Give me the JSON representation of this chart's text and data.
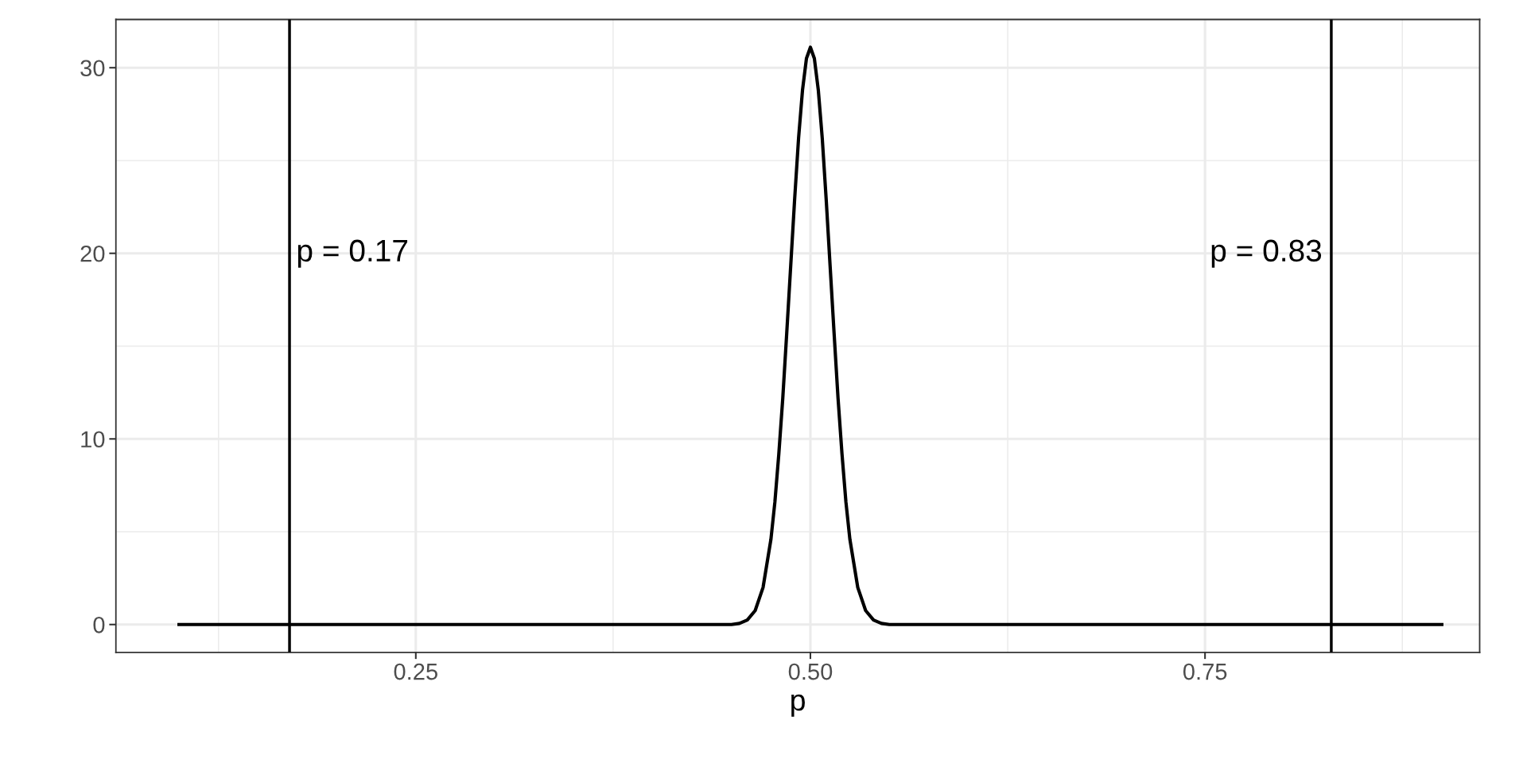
{
  "chart_data": {
    "type": "line",
    "xlabel": "p",
    "series": [
      {
        "color": "#000000",
        "x": [
          0.1,
          0.45,
          0.455,
          0.46,
          0.465,
          0.47,
          0.475,
          0.4775,
          0.48,
          0.4825,
          0.485,
          0.4875,
          0.49,
          0.4925,
          0.495,
          0.4975,
          0.5,
          0.5025,
          0.505,
          0.5075,
          0.51,
          0.5125,
          0.515,
          0.5175,
          0.52,
          0.5225,
          0.525,
          0.53,
          0.535,
          0.54,
          0.545,
          0.55,
          0.9
        ],
        "values": [
          0,
          0,
          0.06,
          0.24,
          0.75,
          2.0,
          4.6,
          6.6,
          9.2,
          12.2,
          15.7,
          19.3,
          22.9,
          26.2,
          28.8,
          30.5,
          31.1,
          30.5,
          28.8,
          26.2,
          22.9,
          19.3,
          15.7,
          12.2,
          9.2,
          6.6,
          4.6,
          2.0,
          0.75,
          0.24,
          0.06,
          0,
          0
        ]
      }
    ],
    "xlim": [
      0.06,
      0.924
    ],
    "ylim": [
      -1.5,
      32.6
    ],
    "xticks": [
      {
        "value": 0.25,
        "label": "0.25"
      },
      {
        "value": 0.5,
        "label": "0.50"
      },
      {
        "value": 0.75,
        "label": "0.75"
      }
    ],
    "yticks": [
      0,
      10,
      20,
      30
    ],
    "ref_lines": [
      {
        "axis": "x",
        "value": 0.17,
        "color": "#000000"
      },
      {
        "axis": "x",
        "value": 0.83,
        "color": "#000000"
      }
    ],
    "annotations": [
      {
        "text": "p = 0.17",
        "x": 0.17,
        "y": 20
      },
      {
        "text": "p = 0.83",
        "x": 0.83,
        "y": 20
      }
    ],
    "grid": true,
    "marker": "none",
    "line_style": "solid"
  }
}
